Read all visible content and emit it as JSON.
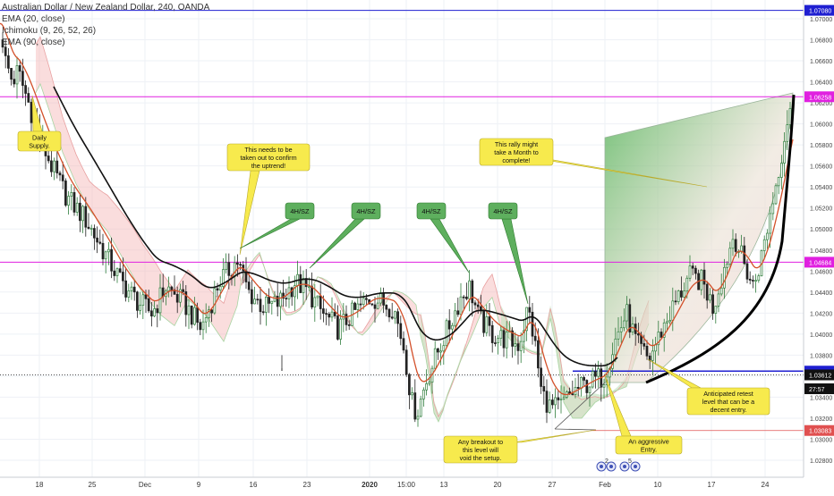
{
  "legend": {
    "title": "Australian Dollar / New Zealand Dollar, 240, OANDA",
    "ema20": "EMA (20, close)",
    "ichimoku": "Ichimoku (9, 26, 52, 26)",
    "ema90": "EMA (90, close)"
  },
  "colors": {
    "up": "#2f7d3c",
    "down": "#222222",
    "ema20": "#d3502a",
    "ema90": "#111111",
    "cloud_red": "#f4b4b4",
    "cloud_green": "#c8e6c3",
    "level_blue": "#1f1fd1",
    "level_magenta": "#e020e0",
    "level_red": "#e05050",
    "note_yellow": "#f7ea4d",
    "tag_green": "#5eaf5e"
  },
  "chart_data": {
    "type": "candlestick",
    "ylim": [
      1.027,
      1.072
    ],
    "y_ticks": [
      1.028,
      1.03,
      1.032,
      1.034,
      1.036,
      1.038,
      1.04,
      1.042,
      1.044,
      1.046,
      1.048,
      1.05,
      1.052,
      1.054,
      1.056,
      1.058,
      1.06,
      1.062,
      1.064,
      1.066,
      1.068,
      1.07
    ],
    "x_ticks": [
      "18",
      "25",
      "Dec",
      "9",
      "16",
      "23",
      "2020",
      "15:00",
      "13",
      "20",
      "27",
      "Feb",
      "10",
      "17",
      "24"
    ],
    "levels": [
      {
        "label": "1.07080",
        "value": 1.0708,
        "color": "#1f1fd1"
      },
      {
        "label": "1.06258",
        "value": 1.06258,
        "color": "#e020e0"
      },
      {
        "label": "1.04684",
        "value": 1.04684,
        "color": "#e020e0"
      },
      {
        "label": "1.03648",
        "value": 1.03648,
        "color": "#1f1fd1"
      },
      {
        "label": "1.03612",
        "value": 1.03612,
        "color": "#111111"
      },
      {
        "label": "27:57",
        "value": 1.0348,
        "color": "#111111"
      },
      {
        "label": "1.03083",
        "value": 1.03083,
        "color": "#e05050"
      }
    ],
    "annotations": [
      {
        "text": "Daily Supply.",
        "kind": "note"
      },
      {
        "text": "This needs to be taken out to confirm the uptrend!",
        "kind": "note"
      },
      {
        "text": "4H/SZ",
        "kind": "tag"
      },
      {
        "text": "4H/SZ",
        "kind": "tag"
      },
      {
        "text": "4H/SZ",
        "kind": "tag"
      },
      {
        "text": "4H/SZ",
        "kind": "tag"
      },
      {
        "text": "This rally might take a Month to complete!",
        "kind": "note"
      },
      {
        "text": "Anticipated retest level that can be a decent entry.",
        "kind": "note"
      },
      {
        "text": "Any breakout to this level will void the setup.",
        "kind": "note"
      },
      {
        "text": "An aggressive Entry.",
        "kind": "note"
      }
    ],
    "event_icons": [
      {
        "icon": "earnings-icon",
        "count": "2"
      },
      {
        "icon": "earnings-icon",
        "count": ""
      },
      {
        "icon": "earnings-icon",
        "count": "5"
      },
      {
        "icon": "earnings-icon",
        "count": ""
      }
    ]
  }
}
